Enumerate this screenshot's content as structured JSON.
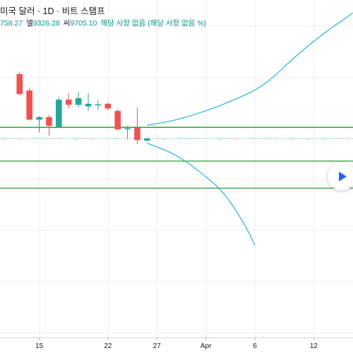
{
  "header": {
    "title": "미국 달러 · 1D · 비트 스탬프",
    "ohlc": {
      "first_value": "758.27",
      "low_label": "엘",
      "low_value": "9326.28",
      "close_label": "씨",
      "close_value": "9705.10",
      "dividend_text": "해당 사항 없음 (해당 사항 없음 %)"
    }
  },
  "colors": {
    "up": "#26a69a",
    "down": "#ef5350",
    "projection": "#26b5d4",
    "level_lines": "#2e9a2e",
    "price_line": "#26a69a",
    "grid": "#eef0f3",
    "play_icon": "#2962ff"
  },
  "chart_data": {
    "type": "candlestick",
    "x_range": [
      "2020-03-11",
      "2020-04-16"
    ],
    "x_ticks": [
      {
        "date": "2020-03-15",
        "label": "15"
      },
      {
        "date": "2020-03-22",
        "label": "22"
      },
      {
        "date": "2020-03-27",
        "label": "27"
      },
      {
        "date": "2020-04-01",
        "label": "Apr"
      },
      {
        "date": "2020-04-06",
        "label": "6"
      },
      {
        "date": "2020-04-12",
        "label": "12"
      }
    ],
    "y_range": [
      3900,
      10500
    ],
    "candles": [
      {
        "date": "2020-03-13",
        "open": 9050,
        "high": 9100,
        "low": 8640,
        "close": 8660
      },
      {
        "date": "2020-03-14",
        "open": 8730,
        "high": 8790,
        "low": 8140,
        "close": 8160
      },
      {
        "date": "2020-03-15",
        "open": 8160,
        "high": 8230,
        "low": 7910,
        "close": 8210
      },
      {
        "date": "2020-03-16",
        "open": 8210,
        "high": 8250,
        "low": 7850,
        "close": 8040
      },
      {
        "date": "2020-03-17",
        "open": 8020,
        "high": 8600,
        "low": 8000,
        "close": 8550
      },
      {
        "date": "2020-03-18",
        "open": 8550,
        "high": 8680,
        "low": 8380,
        "close": 8450
      },
      {
        "date": "2020-03-19",
        "open": 8450,
        "high": 8700,
        "low": 8400,
        "close": 8580
      },
      {
        "date": "2020-03-20",
        "open": 8420,
        "high": 8680,
        "low": 8330,
        "close": 8470
      },
      {
        "date": "2020-03-21",
        "open": 8440,
        "high": 8550,
        "low": 8350,
        "close": 8460
      },
      {
        "date": "2020-03-22",
        "open": 8470,
        "high": 8500,
        "low": 8340,
        "close": 8380
      },
      {
        "date": "2020-03-23",
        "open": 8330,
        "high": 8360,
        "low": 7950,
        "close": 7970
      },
      {
        "date": "2020-03-24",
        "open": 7970,
        "high": 8040,
        "low": 7770,
        "close": 7990
      },
      {
        "date": "2020-03-25",
        "open": 8000,
        "high": 8400,
        "low": 7680,
        "close": 7760
      },
      {
        "date": "2020-03-26",
        "open": 7750,
        "high": 7810,
        "low": 7730,
        "close": 7790
      }
    ],
    "price_line": 7790,
    "levels": [
      8010,
      7350,
      6820
    ],
    "projections": [
      {
        "points": [
          [
            "2020-03-26",
            8050
          ],
          [
            "2020-03-29",
            8150
          ],
          [
            "2020-04-01",
            8330
          ],
          [
            "2020-04-04",
            8550
          ],
          [
            "2020-04-07",
            8830
          ],
          [
            "2020-04-10",
            9380
          ],
          [
            "2020-04-13",
            9850
          ],
          [
            "2020-04-16",
            10250
          ]
        ]
      },
      {
        "points": [
          [
            "2020-03-26",
            7700
          ],
          [
            "2020-03-29",
            7480
          ],
          [
            "2020-04-01",
            7050
          ],
          [
            "2020-04-03",
            6700
          ],
          [
            "2020-04-05",
            6100
          ],
          [
            "2020-04-06",
            5700
          ]
        ]
      }
    ]
  }
}
